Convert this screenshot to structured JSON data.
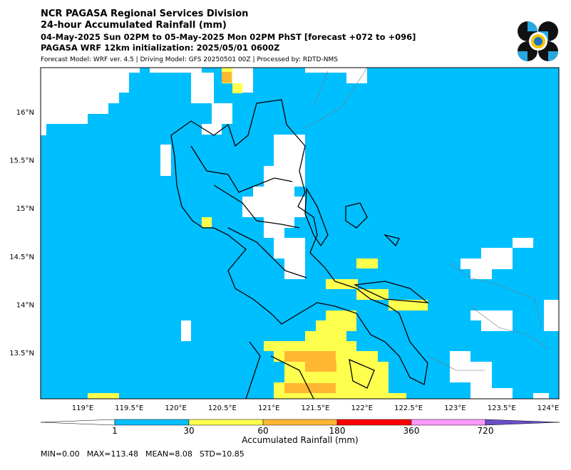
{
  "header": {
    "title": "NCR PAGASA Regional Services Division",
    "subtitle": "24-hour Accumulated Rainfall (mm)",
    "period": "04-May-2025 Sun 02PM to 05-May-2025 Mon 02PM PhST [forecast +072 to +096]",
    "init": "PAGASA WRF 12km initialization: 2025/05/01 0600Z",
    "model": "Forecast Model: WRF ver. 4.5 | Driving Model: GFS 20250501 00Z | Processed by: RDTD-NMS"
  },
  "map": {
    "lat_labels": [
      "16°N",
      "15.5°N",
      "15°N",
      "14.5°N",
      "14°N",
      "13.5°N"
    ],
    "lon_labels": [
      "119°E",
      "119.5°E",
      "120°E",
      "120.5°E",
      "121°E",
      "121.5°E",
      "122°E",
      "122.5°E",
      "123°E",
      "123.5°E",
      "124°E"
    ]
  },
  "colorbar": {
    "ticks": [
      1,
      30,
      60,
      180,
      360,
      720
    ],
    "colors": [
      "#ffffff",
      "#00bfff",
      "#ffff4d",
      "#ffb733",
      "#ff0000",
      "#ff99ff",
      "#6a4fc8"
    ],
    "label": "Accumulated Rainfall (mm)"
  },
  "stats": [
    "MIN=0.00",
    "MAX=113.48",
    "MEAN=8.08",
    "STD=10.85"
  ]
}
